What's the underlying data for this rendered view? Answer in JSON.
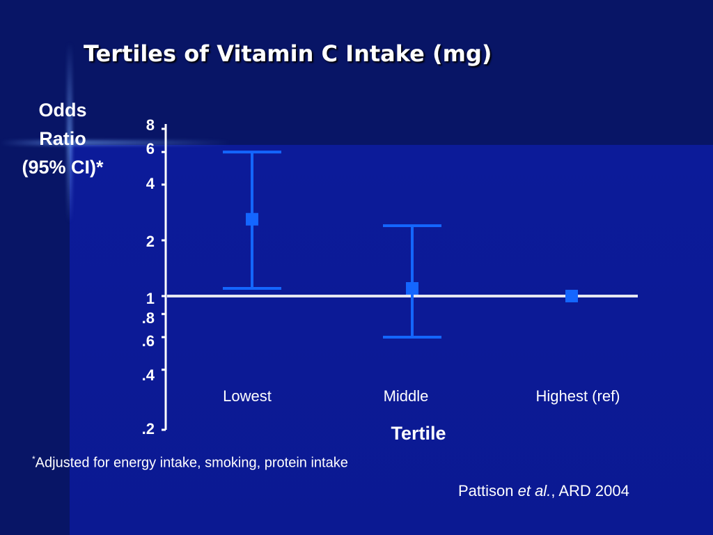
{
  "slide": {
    "title": "Tertiles of Vitamin C Intake (mg)",
    "footnote_mark": "*",
    "footnote_text": "Adjusted for energy intake, smoking, protein intake",
    "citation_author": "Pattison ",
    "citation_etal": "et al.",
    "citation_rest": ", ARD 2004"
  },
  "colors": {
    "background": "#0b1992",
    "axis": "#ffffff",
    "series": "#1466ff",
    "reference_line": "#e6e6f0",
    "text": "#ffffff"
  },
  "chart_data": {
    "type": "scatter",
    "title": "Tertiles of Vitamin C Intake (mg)",
    "ylabel_lines": [
      "Odds",
      "Ratio",
      "(95% CI)*"
    ],
    "xlabel": "Tertile",
    "y_scale": "log",
    "ylim": [
      0.2,
      8
    ],
    "y_ticks": [
      {
        "value": 8,
        "label": "8"
      },
      {
        "value": 6,
        "label": "6"
      },
      {
        "value": 4,
        "label": "4"
      },
      {
        "value": 2,
        "label": "2"
      },
      {
        "value": 1,
        "label": "1"
      },
      {
        "value": 0.8,
        "label": ".8"
      },
      {
        "value": 0.6,
        "label": ".6"
      },
      {
        "value": 0.4,
        "label": ".4"
      },
      {
        "value": 0.2,
        "label": ".2"
      }
    ],
    "categories": [
      "Lowest",
      "Middle",
      "Highest (ref)"
    ],
    "series": [
      {
        "values": [
          2.6,
          1.1,
          1.0
        ],
        "ci_lower": [
          1.1,
          0.6,
          null
        ],
        "ci_upper": [
          6.0,
          2.4,
          null
        ]
      }
    ],
    "reference_line": 1,
    "grid": false,
    "legend": false
  }
}
